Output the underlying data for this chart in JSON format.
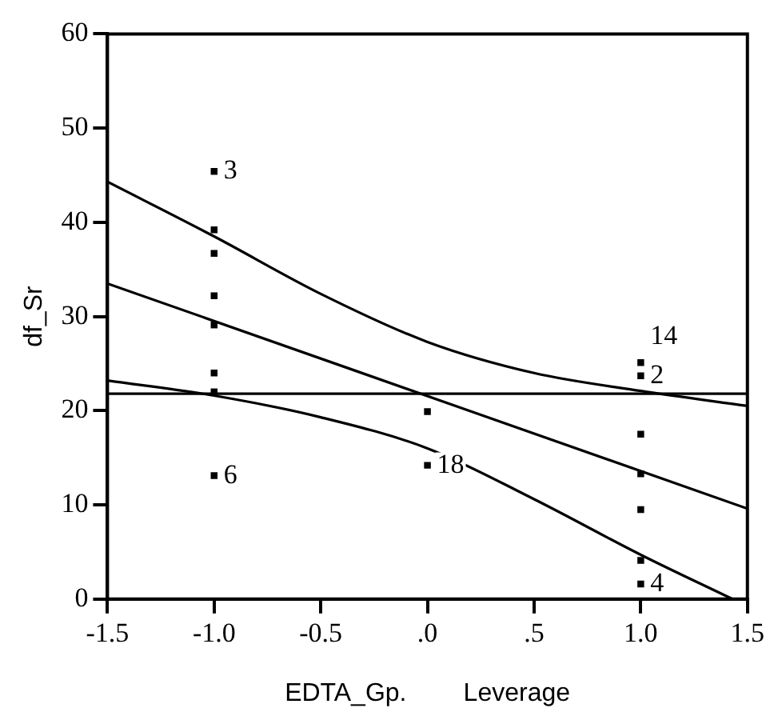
{
  "chart_data": {
    "type": "scatter",
    "xlabel": "EDTA_Gp.        Leverage",
    "ylabel": "df_Sr",
    "xlim": [
      -1.5,
      1.5
    ],
    "xticks": [
      {
        "value": -1.5,
        "label": "-1.5"
      },
      {
        "value": -1,
        "label": "-1.0"
      },
      {
        "value": -0.5,
        "label": "-0.5"
      },
      {
        "value": 0,
        "label": ".0"
      },
      {
        "value": 0.5,
        "label": ".5"
      },
      {
        "value": 1,
        "label": "1.0"
      },
      {
        "value": 1.5,
        "label": "1.5"
      }
    ],
    "ylim": [
      0,
      60
    ],
    "yticks": [
      0,
      10,
      20,
      30,
      40,
      50,
      60
    ],
    "grid": false,
    "legend": false,
    "series": [
      {
        "marker": "square",
        "color": "#000000",
        "x": [
          -1,
          -1,
          -1,
          -1,
          -1,
          -1,
          -1,
          -1,
          0,
          0,
          1,
          1,
          1,
          1,
          1,
          1,
          1
        ],
        "values": [
          45.4,
          39.2,
          36.7,
          32.2,
          29.1,
          24.0,
          22.0,
          13.1,
          19.9,
          14.2,
          25.1,
          23.7,
          17.5,
          13.3,
          9.5,
          4.1,
          1.6
        ]
      },
      {
        "type": "line",
        "marker": "none",
        "color": "#000000",
        "x": [
          -1.5,
          1.5
        ],
        "values": [
          33.5,
          9.6
        ]
      },
      {
        "type": "line",
        "marker": "none",
        "color": "#000000",
        "x": [
          -1.5,
          -1,
          -0.5,
          0,
          0.5,
          1,
          1.5
        ],
        "values": [
          44.3,
          38.5,
          32.4,
          27.3,
          24.0,
          22.1,
          20.5
        ]
      },
      {
        "type": "line",
        "marker": "none",
        "color": "#000000",
        "x": [
          -1.5,
          -1,
          -0.5,
          0,
          0.5,
          1,
          1.43
        ],
        "values": [
          23.2,
          21.6,
          19.3,
          16.0,
          10.6,
          4.7,
          0
        ]
      }
    ],
    "ref_lines": [
      {
        "axis": "y",
        "value": 21.8,
        "color": "#000000"
      }
    ],
    "annotations": [
      {
        "text": "3",
        "x": -1,
        "y": 45.4
      },
      {
        "text": "6",
        "x": -1,
        "y": 13.1
      },
      {
        "text": "18",
        "x": 0,
        "y": 14.2
      },
      {
        "text": "2",
        "x": 1,
        "y": 23.7
      },
      {
        "text": "14",
        "x": 1,
        "y": 25.1
      },
      {
        "text": "4",
        "x": 1,
        "y": 1.6
      }
    ]
  }
}
